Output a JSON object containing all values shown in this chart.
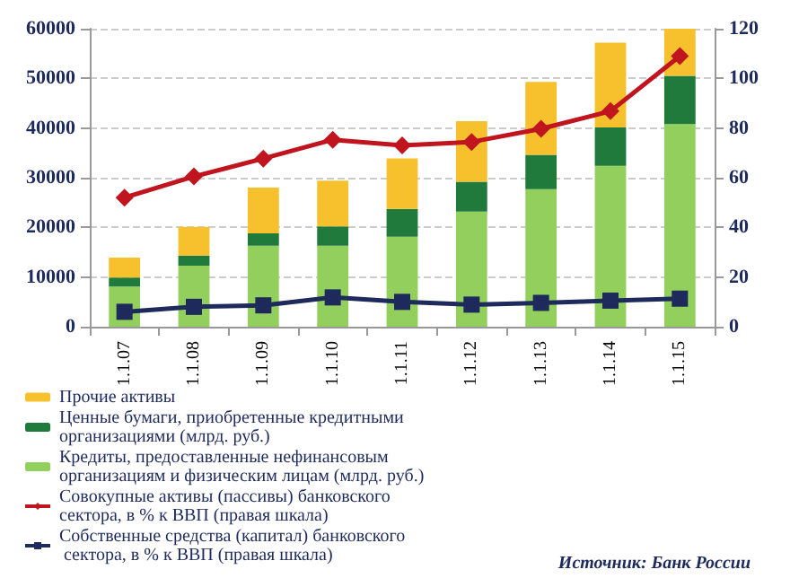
{
  "chart_data": {
    "type": "bar",
    "stacked": true,
    "categories": [
      "1.1.07",
      "1.1.08",
      "1.1.09",
      "1.1.10",
      "1.1.11",
      "1.1.12",
      "1.1.13",
      "1.1.14",
      "1.1.15"
    ],
    "series": [
      {
        "name": "Кредиты, предоставленные нефинансовым организациям и физическим лицам (млрд. руб.)",
        "color": "#92cf5c",
        "values": [
          8100,
          12300,
          16300,
          16300,
          18100,
          23200,
          27700,
          32400,
          40800
        ]
      },
      {
        "name": "Ценные бумаги, приобретенные кредитными организациями (млрд. руб.)",
        "color": "#1f7a3c",
        "values": [
          1800,
          2000,
          2500,
          3900,
          5600,
          6000,
          6900,
          7700,
          9700
        ]
      },
      {
        "name": "Прочие активы",
        "color": "#f7c12e",
        "values": [
          4000,
          5800,
          9200,
          9200,
          10200,
          12200,
          14700,
          17100,
          9500
        ]
      },
      {
        "name": "Совокупные активы (пассивы) банковского сектора, в % к ВВП (правая шкала)",
        "type": "line",
        "axis": "y2",
        "marker": "diamond",
        "color": "#c0141e",
        "values": [
          52,
          60.5,
          67.7,
          75.3,
          73,
          74.4,
          79.7,
          86.8,
          109
        ]
      },
      {
        "name": "Собственные средства (капитал) банковского сектора, в % к ВВП (правая шкала)",
        "type": "line",
        "axis": "y2",
        "marker": "square",
        "color": "#1f2a5c",
        "values": [
          6,
          8,
          8.6,
          11.8,
          10,
          8.9,
          9.6,
          10.5,
          11.3
        ]
      }
    ],
    "ylim": [
      0,
      60000
    ],
    "yticks": [
      0,
      10000,
      20000,
      30000,
      40000,
      50000,
      60000
    ],
    "y2lim": [
      0,
      120
    ],
    "y2ticks": [
      0,
      20,
      40,
      60,
      80,
      100,
      120
    ],
    "grid": "y",
    "legend": "bottom",
    "annotations": [
      "Источник: Банк России"
    ]
  }
}
